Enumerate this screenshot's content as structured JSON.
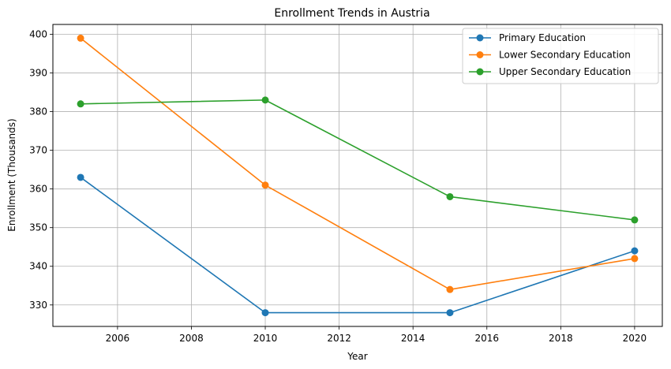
{
  "chart_data": {
    "type": "line",
    "title": "Enrollment Trends in Austria",
    "xlabel": "Year",
    "ylabel": "Enrollment (Thousands)",
    "x": [
      2005,
      2010,
      2015,
      2020
    ],
    "xlim": [
      2004.25,
      2020.75
    ],
    "ylim": [
      324.45,
      402.55
    ],
    "xticks": [
      2006,
      2008,
      2010,
      2012,
      2014,
      2016,
      2018,
      2020
    ],
    "yticks": [
      330,
      340,
      350,
      360,
      370,
      380,
      390,
      400
    ],
    "grid": true,
    "legend_position": "top-right",
    "marker": "circle",
    "series": [
      {
        "name": "Primary Education",
        "color": "#1f77b4",
        "values": [
          363,
          328,
          328,
          344
        ]
      },
      {
        "name": "Lower Secondary Education",
        "color": "#ff7f0e",
        "values": [
          399,
          361,
          334,
          342
        ]
      },
      {
        "name": "Upper Secondary Education",
        "color": "#2ca02c",
        "values": [
          382,
          383,
          358,
          352
        ]
      }
    ]
  }
}
